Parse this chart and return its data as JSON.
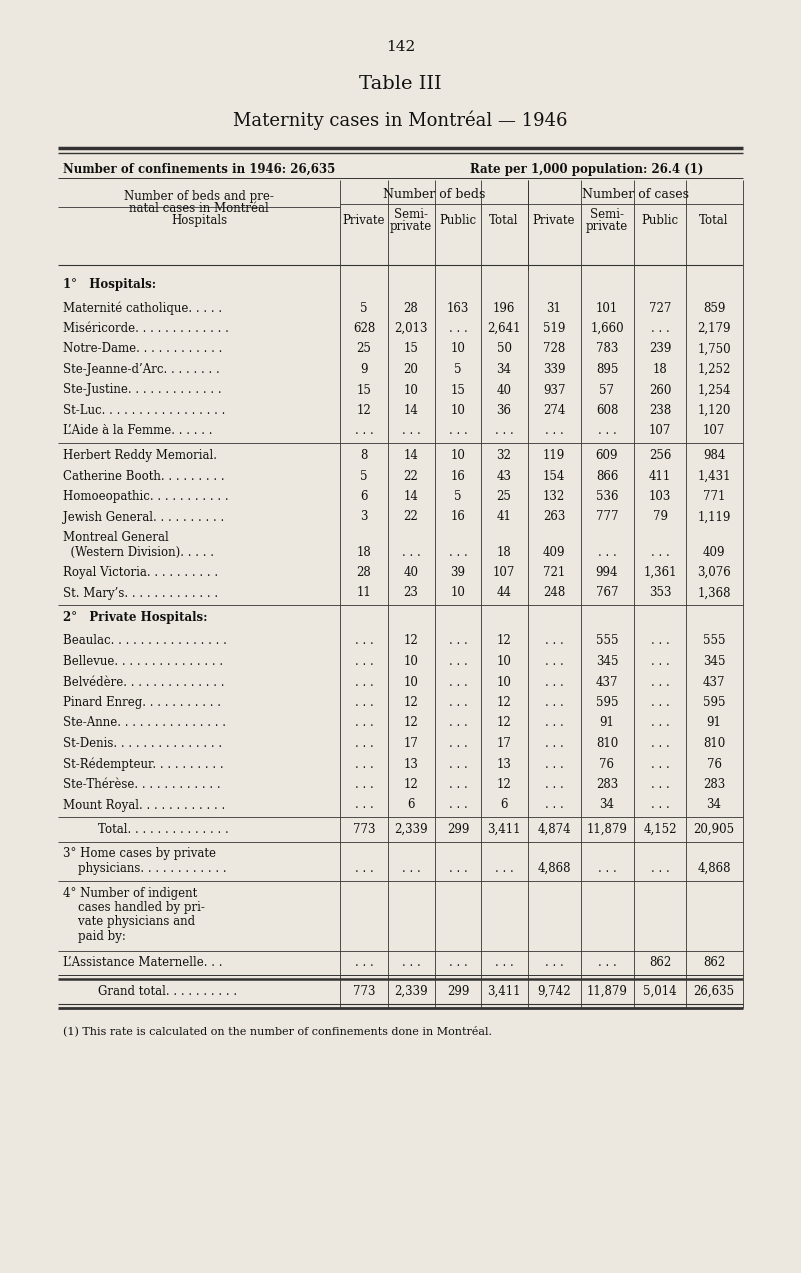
{
  "page_number": "142",
  "title": "Table III",
  "subtitle": "Maternity cases in Montréal — 1946",
  "header_left": "Number of confinements in 1946: 26,635",
  "header_right": "Rate per 1,000 population: 26.4 (1)",
  "group1_header": "Number of beds",
  "group2_header": "Number of cases",
  "sub_headers": [
    "Private",
    "Semi-\nprivate",
    "Public",
    "Total",
    "Private",
    "Semi-\nprivate",
    "Public",
    "Total"
  ],
  "col_label_lines": [
    "Number of beds and pre-",
    "natal cases in Montréal",
    "Hospitals"
  ],
  "section1_title": "1°   Hospitals:",
  "section2_title": "2°   Private Hospitals:",
  "footnote": "(1) This rate is calculated on the number of confinements done in Montréal.",
  "bg_color": "#ede8df",
  "text_color": "#111111",
  "line_color": "#333333",
  "rows": [
    {
      "type": "data",
      "name": "Maternité catholique. . . . .",
      "beds": [
        "5",
        "28",
        "163",
        "196"
      ],
      "cases": [
        "31",
        "101",
        "727",
        "859"
      ]
    },
    {
      "type": "data",
      "name": "Miséricorde. . . . . . . . . . . . .",
      "beds": [
        "628",
        "2,013",
        ". . .",
        "2,641"
      ],
      "cases": [
        "519",
        "1,660",
        ". . .",
        "2,179"
      ]
    },
    {
      "type": "data",
      "name": "Notre-Dame. . . . . . . . . . . .",
      "beds": [
        "25",
        "15",
        "10",
        "50"
      ],
      "cases": [
        "728",
        "783",
        "239",
        "1,750"
      ]
    },
    {
      "type": "data",
      "name": "Ste-Jeanne-d’Arc. . . . . . . .",
      "beds": [
        "9",
        "20",
        "5",
        "34"
      ],
      "cases": [
        "339",
        "895",
        "18",
        "1,252"
      ]
    },
    {
      "type": "data",
      "name": "Ste-Justine. . . . . . . . . . . . .",
      "beds": [
        "15",
        "10",
        "15",
        "40"
      ],
      "cases": [
        "937",
        "57",
        "260",
        "1,254"
      ]
    },
    {
      "type": "data",
      "name": "St-Luc. . . . . . . . . . . . . . . . .",
      "beds": [
        "12",
        "14",
        "10",
        "36"
      ],
      "cases": [
        "274",
        "608",
        "238",
        "1,120"
      ]
    },
    {
      "type": "data",
      "name": "L’Aide à la Femme. . . . . .",
      "beds": [
        ". . .",
        ". . .",
        ". . .",
        ". . ."
      ],
      "cases": [
        ". . .",
        ". . .",
        "107",
        "107"
      ]
    },
    {
      "type": "sep"
    },
    {
      "type": "data",
      "name": "Herbert Reddy Memorial.",
      "beds": [
        "8",
        "14",
        "10",
        "32"
      ],
      "cases": [
        "119",
        "609",
        "256",
        "984"
      ]
    },
    {
      "type": "data",
      "name": "Catherine Booth. . . . . . . . .",
      "beds": [
        "5",
        "22",
        "16",
        "43"
      ],
      "cases": [
        "154",
        "866",
        "411",
        "1,431"
      ]
    },
    {
      "type": "data",
      "name": "Homoeopathic. . . . . . . . . . .",
      "beds": [
        "6",
        "14",
        "5",
        "25"
      ],
      "cases": [
        "132",
        "536",
        "103",
        "771"
      ]
    },
    {
      "type": "data",
      "name": "Jewish General. . . . . . . . . .",
      "beds": [
        "3",
        "22",
        "16",
        "41"
      ],
      "cases": [
        "263",
        "777",
        "79",
        "1,119"
      ]
    },
    {
      "type": "data2",
      "name1": "Montreal General",
      "name2": "  (Western Division). . . . .",
      "beds": [
        "18",
        ". . .",
        ". . .",
        "18"
      ],
      "cases": [
        "409",
        ". . .",
        ". . .",
        "409"
      ]
    },
    {
      "type": "data",
      "name": "Royal Victoria. . . . . . . . . .",
      "beds": [
        "28",
        "40",
        "39",
        "107"
      ],
      "cases": [
        "721",
        "994",
        "1,361",
        "3,076"
      ]
    },
    {
      "type": "data",
      "name": "St. Mary’s. . . . . . . . . . . . .",
      "beds": [
        "11",
        "23",
        "10",
        "44"
      ],
      "cases": [
        "248",
        "767",
        "353",
        "1,368"
      ]
    },
    {
      "type": "sep"
    },
    {
      "type": "data",
      "name": "Beaulac. . . . . . . . . . . . . . . .",
      "beds": [
        ". . .",
        "12",
        ". . .",
        "12"
      ],
      "cases": [
        ". . .",
        "555",
        ". . .",
        "555"
      ]
    },
    {
      "type": "data",
      "name": "Bellevue. . . . . . . . . . . . . . .",
      "beds": [
        ". . .",
        "10",
        ". . .",
        "10"
      ],
      "cases": [
        ". . .",
        "345",
        ". . .",
        "345"
      ]
    },
    {
      "type": "data",
      "name": "Belvédère. . . . . . . . . . . . . .",
      "beds": [
        ". . .",
        "10",
        ". . .",
        "10"
      ],
      "cases": [
        ". . .",
        "437",
        ". . .",
        "437"
      ]
    },
    {
      "type": "data",
      "name": "Pinard Enreg. . . . . . . . . . .",
      "beds": [
        ". . .",
        "12",
        ". . .",
        "12"
      ],
      "cases": [
        ". . .",
        "595",
        ". . .",
        "595"
      ]
    },
    {
      "type": "data",
      "name": "Ste-Anne. . . . . . . . . . . . . . .",
      "beds": [
        ". . .",
        "12",
        ". . .",
        "12"
      ],
      "cases": [
        ". . .",
        "91",
        ". . .",
        "91"
      ]
    },
    {
      "type": "data",
      "name": "St-Denis. . . . . . . . . . . . . . .",
      "beds": [
        ". . .",
        "17",
        ". . .",
        "17"
      ],
      "cases": [
        ". . .",
        "810",
        ". . .",
        "810"
      ]
    },
    {
      "type": "data",
      "name": "St-Rédempteur. . . . . . . . . .",
      "beds": [
        ". . .",
        "13",
        ". . .",
        "13"
      ],
      "cases": [
        ". . .",
        "76",
        ". . .",
        "76"
      ]
    },
    {
      "type": "data",
      "name": "Ste-Thérèse. . . . . . . . . . . .",
      "beds": [
        ". . .",
        "12",
        ". . .",
        "12"
      ],
      "cases": [
        ". . .",
        "283",
        ". . .",
        "283"
      ]
    },
    {
      "type": "data",
      "name": "Mount Royal. . . . . . . . . . . .",
      "beds": [
        ". . .",
        "6",
        ". . .",
        "6"
      ],
      "cases": [
        ". . .",
        "34",
        ". . .",
        "34"
      ]
    },
    {
      "type": "sep"
    },
    {
      "type": "total",
      "name": "Total. . . . . . . . . . . . . .",
      "beds": [
        "773",
        "2,339",
        "299",
        "3,411"
      ],
      "cases": [
        "4,874",
        "11,879",
        "4,152",
        "20,905"
      ]
    },
    {
      "type": "sep"
    },
    {
      "type": "home",
      "label1": "3° Home cases by private",
      "label2": "    physicians. . . . . . . . . . . .",
      "beds": [
        ". . .",
        ". . .",
        ". . .",
        ". . ."
      ],
      "cases": [
        "4,868",
        ". . .",
        ". . .",
        "4,868"
      ]
    },
    {
      "type": "sep"
    },
    {
      "type": "section4",
      "label1": "4° Number of indigent",
      "label2": "    cases handled by pri-",
      "label3": "    vate physicians and",
      "label4": "    paid by:"
    },
    {
      "type": "sep"
    },
    {
      "type": "assistance",
      "name": "L’Assistance Maternelle. . .",
      "beds": [
        ". . .",
        ". . .",
        ". . .",
        ". . ."
      ],
      "cases": [
        ". . .",
        ". . .",
        "862",
        "862"
      ]
    },
    {
      "type": "sep2"
    },
    {
      "type": "grandtotal",
      "name": "Grand total. . . . . . . . . .",
      "beds": [
        "773",
        "2,339",
        "299",
        "3,411"
      ],
      "cases": [
        "9,742",
        "11,879",
        "5,014",
        "26,635"
      ]
    }
  ]
}
